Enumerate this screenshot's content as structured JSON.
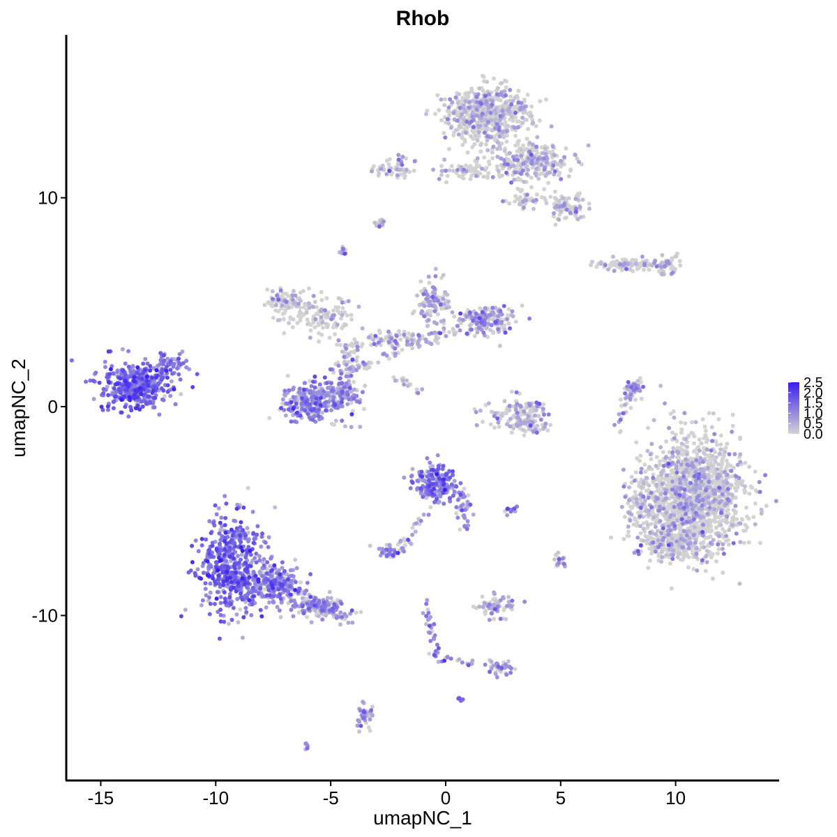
{
  "chart_data": {
    "type": "scatter",
    "title": "Rhob",
    "xlabel": "umapNC_1",
    "ylabel": "umapNC_2",
    "xlim": [
      -16.5,
      14.5
    ],
    "ylim": [
      -17.9,
      17.8
    ],
    "x_ticks": [
      -15,
      -10,
      -5,
      0,
      5,
      10
    ],
    "x_tick_labels": [
      "-15",
      "-10",
      "-5",
      "0",
      "5",
      "10"
    ],
    "y_ticks": [
      -10,
      0,
      10
    ],
    "y_tick_labels": [
      "-10",
      "0",
      "10"
    ],
    "grid": false,
    "legend": {
      "placement": "right",
      "type": "colorbar",
      "min": 0.0,
      "max": 2.5,
      "labels": [
        "2.5",
        "2.0",
        "1.5",
        "1.0",
        "0.5",
        "0.0"
      ],
      "low_color": "#d3d3d3",
      "high_color": "#3a1ff0"
    },
    "clusters": [
      {
        "cx": -13.5,
        "cy": 1.0,
        "rx": 1.3,
        "ry": 1.0,
        "n": 420,
        "mean_expr": 1.3
      },
      {
        "cx": -12.0,
        "cy": 1.9,
        "rx": 0.7,
        "ry": 0.6,
        "n": 60,
        "mean_expr": 1.1
      },
      {
        "cx": -9.2,
        "cy": -7.6,
        "rx": 1.3,
        "ry": 2.1,
        "n": 520,
        "mean_expr": 1.3
      },
      {
        "cx": -7.3,
        "cy": -8.6,
        "rx": 0.9,
        "ry": 0.9,
        "n": 180,
        "mean_expr": 0.9
      },
      {
        "cx": -5.4,
        "cy": -9.6,
        "rx": 1.2,
        "ry": 0.5,
        "n": 120,
        "mean_expr": 0.7
      },
      {
        "cx": -6.0,
        "cy": 0.3,
        "rx": 1.0,
        "ry": 0.9,
        "n": 230,
        "mean_expr": 0.9
      },
      {
        "cx": -4.5,
        "cy": 0.6,
        "rx": 0.8,
        "ry": 1.0,
        "n": 120,
        "mean_expr": 0.7
      },
      {
        "cx": -7.0,
        "cy": 5.0,
        "rx": 0.8,
        "ry": 0.6,
        "n": 90,
        "mean_expr": 0.15
      },
      {
        "cx": -5.3,
        "cy": 4.3,
        "rx": 1.2,
        "ry": 0.9,
        "n": 110,
        "mean_expr": 0.15
      },
      {
        "cx": -4.3,
        "cy": 2.4,
        "rx": 0.5,
        "ry": 1.0,
        "n": 50,
        "mean_expr": 0.35
      },
      {
        "cx": -2.3,
        "cy": 3.2,
        "rx": 1.2,
        "ry": 0.5,
        "n": 70,
        "mean_expr": 0.4
      },
      {
        "cx": -0.6,
        "cy": 5.0,
        "rx": 0.7,
        "ry": 1.1,
        "n": 110,
        "mean_expr": 0.45
      },
      {
        "cx": 1.8,
        "cy": 4.1,
        "rx": 1.1,
        "ry": 0.6,
        "n": 170,
        "mean_expr": 0.5
      },
      {
        "cx": -2.2,
        "cy": 11.4,
        "rx": 0.8,
        "ry": 0.5,
        "n": 60,
        "mean_expr": 0.25
      },
      {
        "cx": 0.8,
        "cy": 11.3,
        "rx": 1.1,
        "ry": 0.4,
        "n": 60,
        "mean_expr": 0.1
      },
      {
        "cx": 1.9,
        "cy": 14.0,
        "rx": 1.6,
        "ry": 1.2,
        "n": 620,
        "mean_expr": 0.12
      },
      {
        "cx": 3.8,
        "cy": 11.7,
        "rx": 1.6,
        "ry": 0.8,
        "n": 260,
        "mean_expr": 0.12
      },
      {
        "cx": 5.2,
        "cy": 9.5,
        "rx": 0.8,
        "ry": 0.6,
        "n": 90,
        "mean_expr": 0.15
      },
      {
        "cx": 3.4,
        "cy": 9.9,
        "rx": 0.6,
        "ry": 0.4,
        "n": 40,
        "mean_expr": 0.15
      },
      {
        "cx": 8.2,
        "cy": 6.8,
        "rx": 1.5,
        "ry": 0.25,
        "n": 110,
        "mean_expr": 0.1
      },
      {
        "cx": 9.6,
        "cy": 6.8,
        "rx": 0.6,
        "ry": 0.4,
        "n": 50,
        "mean_expr": 0.2
      },
      {
        "cx": 10.8,
        "cy": -4.2,
        "rx": 1.9,
        "ry": 2.5,
        "n": 1500,
        "mean_expr": 0.1
      },
      {
        "cx": 9.8,
        "cy": -6.6,
        "rx": 1.5,
        "ry": 0.6,
        "n": 220,
        "mean_expr": 0.1
      },
      {
        "cx": 8.4,
        "cy": -4.9,
        "rx": 0.6,
        "ry": 1.0,
        "n": 80,
        "mean_expr": 0.1
      },
      {
        "cx": -0.5,
        "cy": -3.7,
        "rx": 0.9,
        "ry": 0.9,
        "n": 190,
        "mean_expr": 1.1
      },
      {
        "cx": 0.8,
        "cy": -4.8,
        "rx": 0.3,
        "ry": 0.9,
        "n": 40,
        "mean_expr": 0.9
      },
      {
        "cx": 3.0,
        "cy": -0.3,
        "rx": 1.2,
        "ry": 0.8,
        "n": 120,
        "mean_expr": 0.25
      },
      {
        "cx": 3.5,
        "cy": -0.9,
        "rx": 0.8,
        "ry": 0.3,
        "n": 50,
        "mean_expr": 0.5
      },
      {
        "cx": 2.2,
        "cy": -9.6,
        "rx": 0.8,
        "ry": 0.5,
        "n": 70,
        "mean_expr": 0.35
      },
      {
        "cx": -2.3,
        "cy": -6.9,
        "rx": 0.6,
        "ry": 0.3,
        "n": 45,
        "mean_expr": 0.6
      },
      {
        "cx": 2.4,
        "cy": -12.5,
        "rx": 0.5,
        "ry": 0.3,
        "n": 30,
        "mean_expr": 0.7
      },
      {
        "cx": -3.5,
        "cy": -14.8,
        "rx": 0.3,
        "ry": 0.6,
        "n": 40,
        "mean_expr": 0.6
      },
      {
        "cx": 8.2,
        "cy": 0.8,
        "rx": 0.3,
        "ry": 0.5,
        "n": 30,
        "mean_expr": 0.9
      },
      {
        "cx": 5.0,
        "cy": -7.4,
        "rx": 0.2,
        "ry": 0.4,
        "n": 20,
        "mean_expr": 0.3
      },
      {
        "cx": -2.9,
        "cy": 8.8,
        "rx": 0.25,
        "ry": 0.15,
        "n": 14,
        "mean_expr": 0.5
      },
      {
        "cx": -4.5,
        "cy": 7.4,
        "rx": 0.2,
        "ry": 0.2,
        "n": 12,
        "mean_expr": 0.6
      },
      {
        "cx": 2.9,
        "cy": -5.0,
        "rx": 0.3,
        "ry": 0.15,
        "n": 12,
        "mean_expr": 0.8
      },
      {
        "cx": 0.6,
        "cy": -14.0,
        "rx": 0.1,
        "ry": 0.1,
        "n": 5,
        "mean_expr": 1.0
      },
      {
        "cx": -6.0,
        "cy": -16.2,
        "rx": 0.15,
        "ry": 0.1,
        "n": 6,
        "mean_expr": 0.5
      }
    ],
    "paths": [
      {
        "from": [
          -4.3,
          1.6
        ],
        "to": [
          -1.2,
          3.2
        ],
        "n": 40,
        "mean_expr": 0.5
      },
      {
        "from": [
          -2.2,
          1.5
        ],
        "to": [
          -1.2,
          0.6
        ],
        "n": 18,
        "mean_expr": 0.3
      },
      {
        "from": [
          -8.0,
          -7.8
        ],
        "to": [
          -4.0,
          -10.4
        ],
        "n": 80,
        "mean_expr": 0.7
      },
      {
        "from": [
          -1.8,
          -6.8
        ],
        "to": [
          -0.8,
          -4.8
        ],
        "n": 20,
        "mean_expr": 0.6
      },
      {
        "from": [
          -0.9,
          -9.3
        ],
        "to": [
          -0.3,
          -12.2
        ],
        "n": 30,
        "mean_expr": 0.8
      },
      {
        "from": [
          -0.3,
          -12.1
        ],
        "to": [
          1.3,
          -12.3
        ],
        "n": 14,
        "mean_expr": 0.8
      },
      {
        "from": [
          1.8,
          -12.3
        ],
        "to": [
          2.5,
          -12.6
        ],
        "n": 10,
        "mean_expr": 0.8
      },
      {
        "from": [
          7.7,
          0.0
        ],
        "to": [
          8.4,
          1.2
        ],
        "n": 25,
        "mean_expr": 0.5
      },
      {
        "from": [
          7.6,
          -1.2
        ],
        "to": [
          7.7,
          -0.2
        ],
        "n": 10,
        "mean_expr": 0.2
      },
      {
        "from": [
          -1.3,
          3.0
        ],
        "to": [
          0.6,
          3.7
        ],
        "n": 25,
        "mean_expr": 0.3
      }
    ]
  }
}
